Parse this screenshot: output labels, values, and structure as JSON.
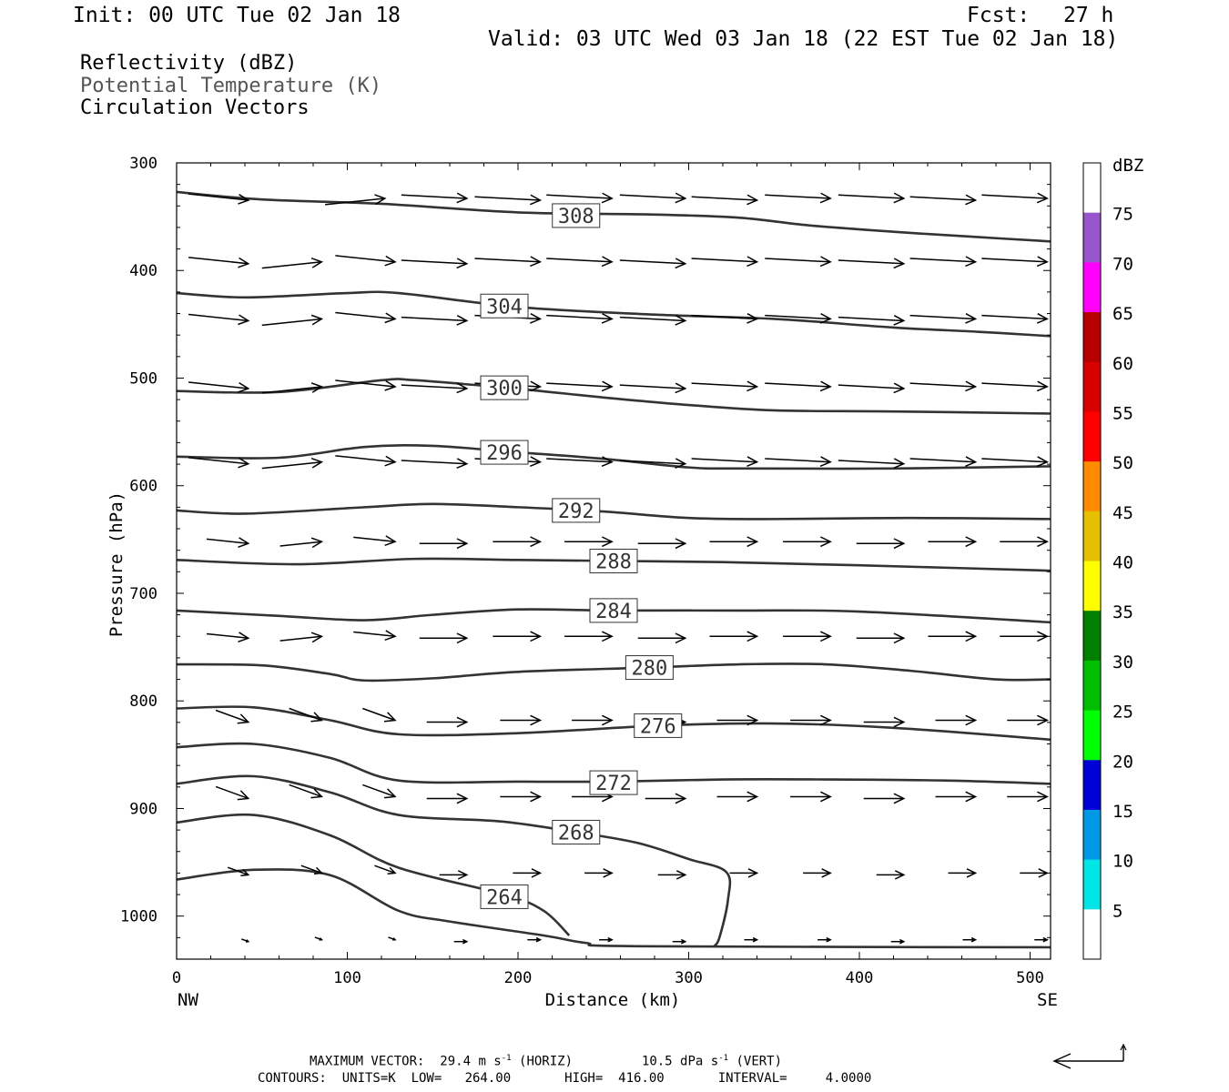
{
  "header": {
    "init": "Init: 00 UTC Tue 02 Jan 18",
    "fcst_label": "Fcst:",
    "fcst_value": "27 h",
    "valid": "Valid: 03 UTC Wed 03 Jan 18 (22 EST Tue 02 Jan 18)",
    "fields": [
      "Reflectivity (dBZ)",
      "Potential Temperature (K)",
      "Circulation Vectors"
    ]
  },
  "footer": {
    "max_vector_label": "MAXIMUM VECTOR:",
    "horiz_value": "29.4 m s",
    "horiz_tag": "(HORIZ)",
    "vert_value": "10.5 dPa s",
    "vert_tag": "(VERT)",
    "contours_line": "CONTOURS:  UNITS=K  LOW=   264.00       HIGH=  416.00       INTERVAL=     4.0000"
  },
  "chart_data": {
    "type": "line",
    "title": "",
    "xlabel": "Distance (km)",
    "ylabel": "Pressure (hPa)",
    "xlim": [
      0,
      512
    ],
    "ylim": [
      300,
      1040
    ],
    "x_ticks": [
      0,
      100,
      200,
      300,
      400,
      500
    ],
    "y_ticks": [
      300,
      400,
      500,
      600,
      700,
      800,
      900,
      1000
    ],
    "x_end_labels": {
      "left": "NW",
      "right": "SE"
    },
    "colorbar": {
      "unit": "dBZ",
      "labels": [
        5,
        10,
        15,
        20,
        25,
        30,
        35,
        40,
        45,
        50,
        55,
        60,
        65,
        70,
        75
      ],
      "colors": [
        "#ffffff",
        "#00e5e5",
        "#0099e5",
        "#0000d9",
        "#00ff00",
        "#00bf00",
        "#008000",
        "#ffff00",
        "#e6bf00",
        "#ff8c00",
        "#ff0000",
        "#d90000",
        "#b80000",
        "#ff00ff",
        "#9955cc",
        "#ffffff"
      ]
    },
    "contours": [
      {
        "level": "308",
        "label_at": [
          234,
          349
        ],
        "points": [
          [
            0,
            327
          ],
          [
            50,
            334
          ],
          [
            120,
            338
          ],
          [
            200,
            346
          ],
          [
            280,
            348
          ],
          [
            330,
            351
          ],
          [
            370,
            358
          ],
          [
            420,
            364
          ],
          [
            470,
            369
          ],
          [
            512,
            373
          ]
        ]
      },
      {
        "level": "304",
        "label_at": [
          192,
          433
        ],
        "points": [
          [
            0,
            421
          ],
          [
            40,
            425
          ],
          [
            100,
            421
          ],
          [
            130,
            421
          ],
          [
            200,
            434
          ],
          [
            280,
            441
          ],
          [
            350,
            445
          ],
          [
            420,
            453
          ],
          [
            470,
            457
          ],
          [
            512,
            461
          ]
        ]
      },
      {
        "level": "300",
        "label_at": [
          192,
          509
        ],
        "points": [
          [
            0,
            512
          ],
          [
            60,
            513
          ],
          [
            120,
            502
          ],
          [
            140,
            502
          ],
          [
            200,
            510
          ],
          [
            250,
            518
          ],
          [
            300,
            525
          ],
          [
            350,
            530
          ],
          [
            420,
            531
          ],
          [
            512,
            533
          ]
        ]
      },
      {
        "level": "296",
        "label_at": [
          192,
          569
        ],
        "points": [
          [
            0,
            573
          ],
          [
            60,
            574
          ],
          [
            110,
            564
          ],
          [
            150,
            563
          ],
          [
            200,
            569
          ],
          [
            250,
            575
          ],
          [
            300,
            583
          ],
          [
            330,
            584
          ],
          [
            420,
            584
          ],
          [
            512,
            582
          ]
        ]
      },
      {
        "level": "292",
        "label_at": [
          234,
          623
        ],
        "points": [
          [
            0,
            623
          ],
          [
            40,
            626
          ],
          [
            110,
            620
          ],
          [
            150,
            617
          ],
          [
            200,
            620
          ],
          [
            250,
            624
          ],
          [
            300,
            630
          ],
          [
            350,
            631
          ],
          [
            430,
            630
          ],
          [
            512,
            631
          ]
        ]
      },
      {
        "level": "288",
        "label_at": [
          256,
          670
        ],
        "points": [
          [
            0,
            669
          ],
          [
            70,
            673
          ],
          [
            140,
            668
          ],
          [
            200,
            669
          ],
          [
            260,
            670
          ],
          [
            320,
            671
          ],
          [
            400,
            674
          ],
          [
            512,
            679
          ]
        ]
      },
      {
        "level": "284",
        "label_at": [
          256,
          716
        ],
        "points": [
          [
            0,
            716
          ],
          [
            60,
            721
          ],
          [
            110,
            725
          ],
          [
            150,
            720
          ],
          [
            200,
            715
          ],
          [
            256,
            716
          ],
          [
            330,
            716
          ],
          [
            400,
            717
          ],
          [
            512,
            727
          ]
        ]
      },
      {
        "level": "280",
        "label_at": [
          277,
          769
        ],
        "points": [
          [
            0,
            766
          ],
          [
            50,
            767
          ],
          [
            90,
            775
          ],
          [
            110,
            781
          ],
          [
            150,
            779
          ],
          [
            200,
            773
          ],
          [
            277,
            769
          ],
          [
            330,
            766
          ],
          [
            380,
            766
          ],
          [
            430,
            772
          ],
          [
            480,
            780
          ],
          [
            512,
            780
          ]
        ]
      },
      {
        "level": "276",
        "label_at": [
          282,
          823
        ],
        "points": [
          [
            0,
            807
          ],
          [
            45,
            806
          ],
          [
            90,
            818
          ],
          [
            130,
            831
          ],
          [
            200,
            830
          ],
          [
            282,
            823
          ],
          [
            350,
            821
          ],
          [
            420,
            825
          ],
          [
            512,
            836
          ]
        ]
      },
      {
        "level": "272",
        "label_at": [
          256,
          876
        ],
        "points": [
          [
            0,
            843
          ],
          [
            45,
            840
          ],
          [
            90,
            853
          ],
          [
            130,
            874
          ],
          [
            200,
            875
          ],
          [
            256,
            875
          ],
          [
            320,
            873
          ],
          [
            380,
            873
          ],
          [
            450,
            874
          ],
          [
            512,
            877
          ]
        ]
      },
      {
        "level": "268",
        "label_at": [
          234,
          922
        ],
        "points": [
          [
            0,
            877
          ],
          [
            45,
            870
          ],
          [
            90,
            885
          ],
          [
            130,
            906
          ],
          [
            190,
            912
          ],
          [
            234,
            922
          ],
          [
            270,
            932
          ],
          [
            300,
            947
          ],
          [
            322,
            959
          ],
          [
            323,
            985
          ],
          [
            318,
            1020
          ],
          [
            315,
            1028
          ]
        ]
      },
      {
        "level": "264",
        "label_at": [
          192,
          982
        ],
        "points": [
          [
            0,
            913
          ],
          [
            45,
            906
          ],
          [
            90,
            925
          ],
          [
            130,
            955
          ],
          [
            192,
            980
          ],
          [
            215,
            995
          ],
          [
            230,
            1018
          ]
        ]
      },
      {
        "level": "",
        "label_at": null,
        "points": [
          [
            0,
            966
          ],
          [
            45,
            957
          ],
          [
            90,
            962
          ],
          [
            130,
            995
          ],
          [
            160,
            1005
          ],
          [
            215,
            1018
          ],
          [
            240,
            1025
          ],
          [
            270,
            1028
          ],
          [
            512,
            1029
          ]
        ]
      }
    ],
    "vector_rows": [
      {
        "p": 333,
        "x": [
          42,
          122,
          170,
          213,
          255,
          298,
          340,
          383,
          426,
          468,
          510
        ]
      },
      {
        "p": 392,
        "x": [
          42,
          85,
          128,
          170,
          213,
          255,
          298,
          340,
          383,
          426,
          468,
          510
        ]
      },
      {
        "p": 445,
        "x": [
          42,
          85,
          128,
          170,
          213,
          255,
          298,
          340,
          383,
          426,
          468,
          510
        ]
      },
      {
        "p": 508,
        "x": [
          42,
          85,
          128,
          170,
          213,
          255,
          298,
          340,
          383,
          426,
          468,
          510
        ]
      },
      {
        "p": 578,
        "x": [
          42,
          85,
          128,
          170,
          213,
          255,
          298,
          340,
          383,
          426,
          468,
          510
        ]
      },
      {
        "p": 652,
        "x": [
          42,
          85,
          128,
          170,
          213,
          255,
          298,
          340,
          383,
          426,
          468,
          510
        ]
      },
      {
        "p": 740,
        "x": [
          42,
          85,
          128,
          170,
          213,
          255,
          298,
          340,
          383,
          426,
          468,
          510
        ]
      },
      {
        "p": 818,
        "x": [
          42,
          85,
          128,
          170,
          213,
          255,
          298,
          340,
          383,
          426,
          468,
          510
        ]
      },
      {
        "p": 889,
        "x": [
          42,
          85,
          128,
          170,
          213,
          255,
          298,
          340,
          383,
          426,
          468,
          510
        ]
      },
      {
        "p": 960,
        "x": [
          42,
          85,
          128,
          170,
          213,
          255,
          298,
          340,
          383,
          426,
          468,
          510
        ]
      },
      {
        "p": 1022,
        "x": [
          42,
          85,
          128,
          170,
          213,
          255,
          298,
          340,
          383,
          426,
          468,
          510
        ]
      }
    ],
    "vector_scale_deg": 0.0
  }
}
